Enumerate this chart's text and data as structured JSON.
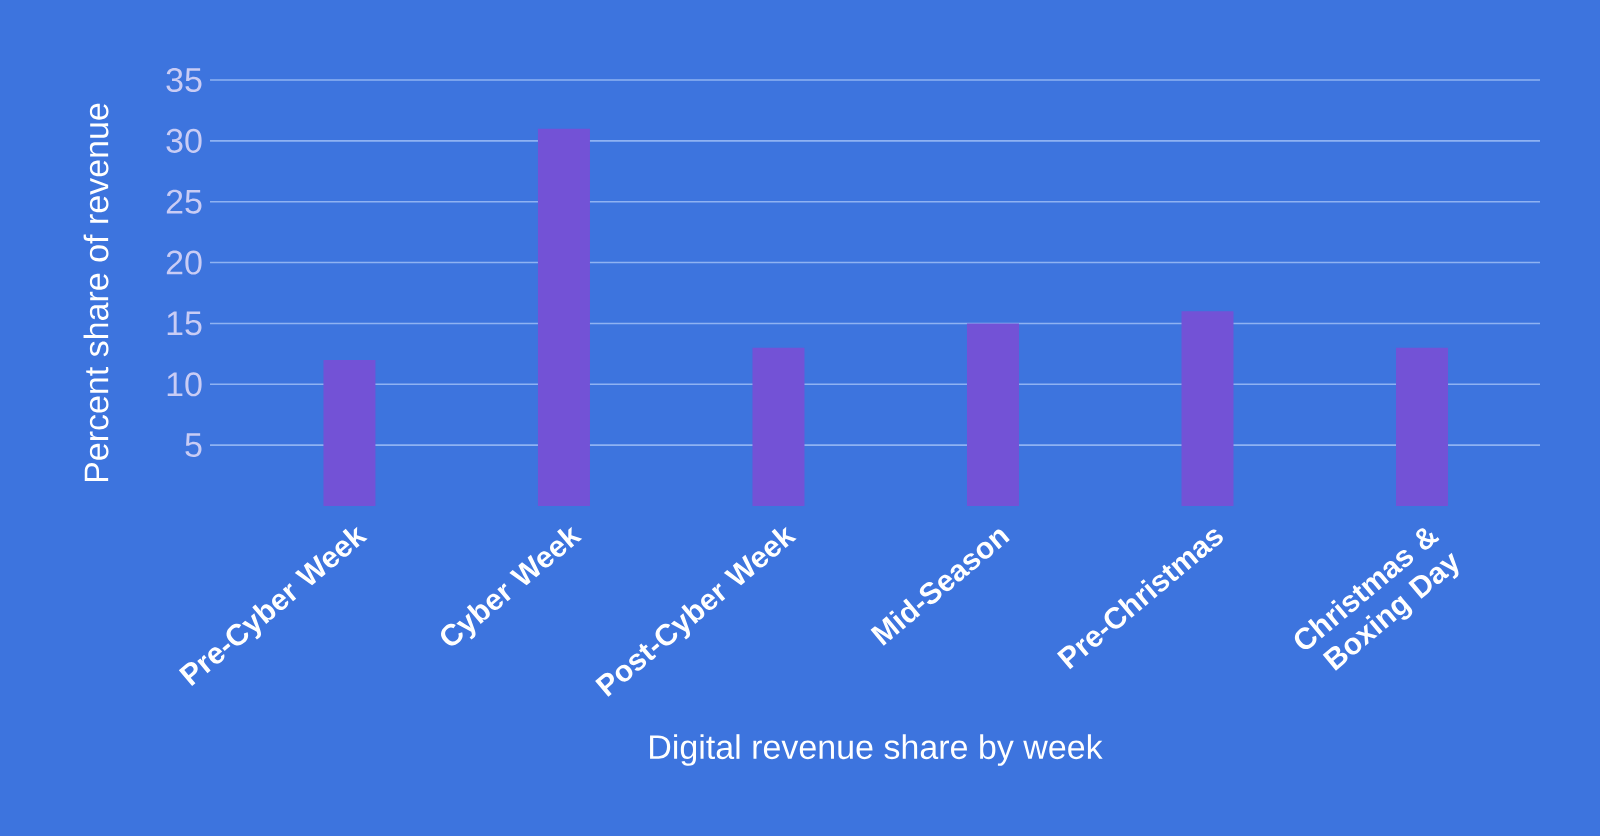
{
  "chart_data": {
    "type": "bar",
    "xlabel": "Digital revenue share by week",
    "ylabel": "Percent share of revenue",
    "categories": [
      "Pre-Cyber Week",
      "Cyber Week",
      "Post-Cyber Week",
      "Mid-Season",
      "Pre-Christmas",
      "Christmas & Boxing Day"
    ],
    "values": [
      12,
      31,
      13,
      15,
      16,
      13
    ],
    "color": "#7352d6",
    "ylim": [
      0,
      35
    ],
    "yticks": [
      5,
      10,
      15,
      20,
      25,
      30,
      35
    ],
    "grid": "y"
  }
}
